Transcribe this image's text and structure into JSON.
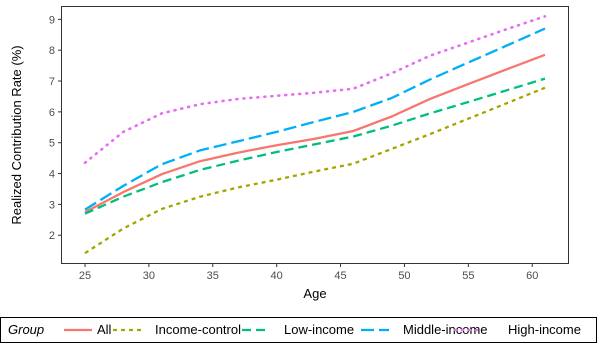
{
  "chart_data": {
    "type": "line",
    "title": "",
    "xlabel": "Age",
    "ylabel": "Realized Contribution Rate (%)",
    "xlim": [
      23.2,
      62.8
    ],
    "ylim": [
      1.1,
      9.4
    ],
    "xticks": [
      25,
      30,
      35,
      40,
      45,
      50,
      55,
      60
    ],
    "yticks": [
      2,
      3,
      4,
      5,
      6,
      7,
      8,
      9
    ],
    "grid": false,
    "legend_placement": "bottom",
    "legend_title": "Group",
    "series": [
      {
        "name": "All",
        "color": "#F8766D",
        "dash": "solid",
        "x": [
          25,
          28,
          31,
          34,
          37,
          40,
          43,
          46,
          49,
          52,
          55,
          58,
          61
        ],
        "y": [
          2.75,
          3.4,
          3.98,
          4.4,
          4.68,
          4.92,
          5.13,
          5.38,
          5.85,
          6.42,
          6.9,
          7.38,
          7.85
        ]
      },
      {
        "name": "Income-control",
        "color": "#A3A500",
        "dash": "dashed-short",
        "x": [
          25,
          28,
          31,
          34,
          37,
          40,
          43,
          46,
          49,
          52,
          55,
          58,
          61
        ],
        "y": [
          1.42,
          2.22,
          2.85,
          3.25,
          3.55,
          3.8,
          4.07,
          4.32,
          4.8,
          5.28,
          5.78,
          6.28,
          6.78
        ]
      },
      {
        "name": "Low-income",
        "color": "#00BF7D",
        "dash": "dashed",
        "x": [
          25,
          28,
          31,
          34,
          37,
          40,
          43,
          46,
          49,
          52,
          55,
          58,
          61
        ],
        "y": [
          2.7,
          3.25,
          3.72,
          4.12,
          4.42,
          4.7,
          4.95,
          5.2,
          5.55,
          5.95,
          6.32,
          6.7,
          7.08
        ]
      },
      {
        "name": "Middle-income",
        "color": "#00B0F6",
        "dash": "long-dashed",
        "x": [
          25,
          28,
          31,
          34,
          37,
          40,
          43,
          46,
          49,
          52,
          55,
          58,
          61
        ],
        "y": [
          2.83,
          3.6,
          4.3,
          4.75,
          5.05,
          5.35,
          5.68,
          6.0,
          6.45,
          7.05,
          7.6,
          8.15,
          8.7
        ]
      },
      {
        "name": "High-income",
        "color": "#E76BF3",
        "dash": "dotted",
        "x": [
          25,
          28,
          31,
          34,
          37,
          40,
          43,
          46,
          49,
          52,
          55,
          58,
          61
        ],
        "y": [
          4.35,
          5.35,
          5.95,
          6.25,
          6.42,
          6.52,
          6.62,
          6.75,
          7.25,
          7.82,
          8.25,
          8.68,
          9.1
        ]
      }
    ]
  }
}
